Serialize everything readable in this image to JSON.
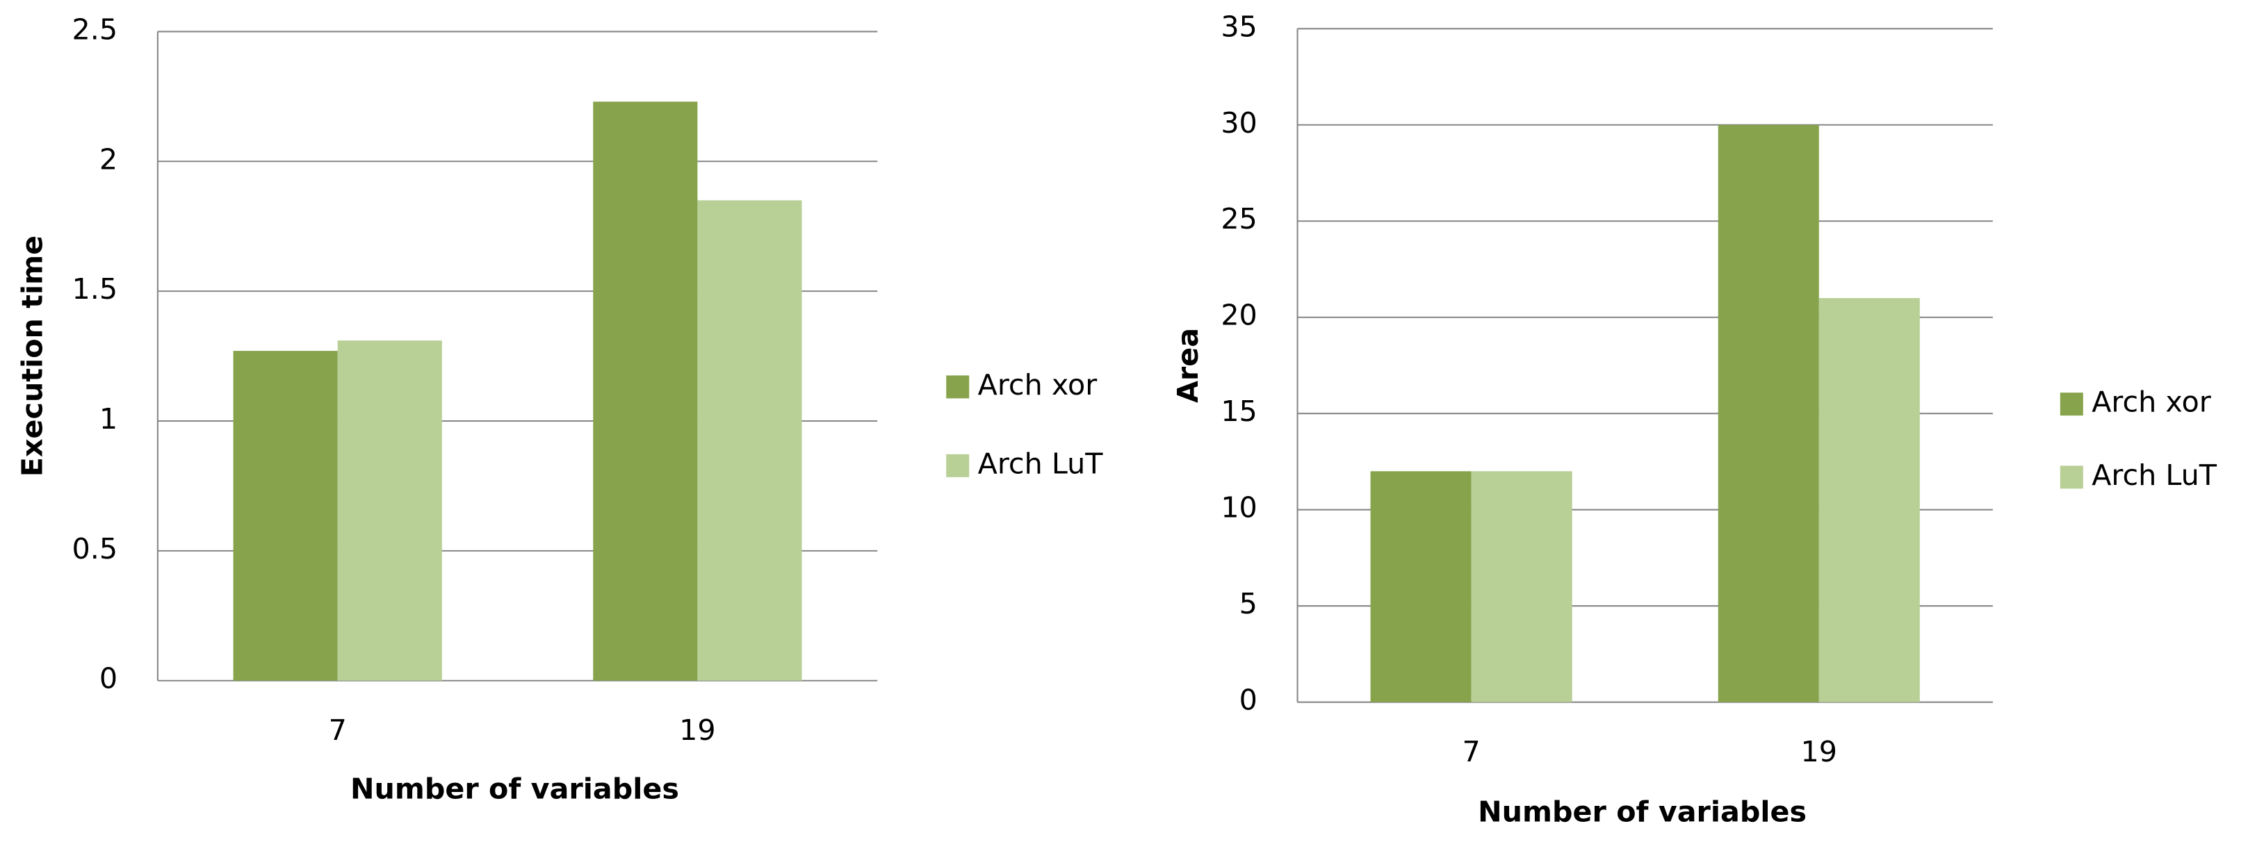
{
  "chart_data": [
    {
      "type": "bar",
      "y_label": "Execution time",
      "x_label": "Number of variables",
      "categories": [
        "7",
        "19"
      ],
      "series": [
        {
          "name": "Arch xor",
          "color": "#87a34c",
          "values": [
            1.27,
            2.23
          ]
        },
        {
          "name": "Arch LuT",
          "color": "#b8cf96",
          "values": [
            1.31,
            1.85
          ]
        }
      ],
      "ylim": [
        0,
        2.5
      ],
      "yticks": [
        0,
        0.5,
        1,
        1.5,
        2,
        2.5
      ],
      "grid": true,
      "legend": "right"
    },
    {
      "type": "bar",
      "y_label": "Area",
      "x_label": "Number of variables",
      "categories": [
        "7",
        "19"
      ],
      "series": [
        {
          "name": "Arch xor",
          "color": "#87a34c",
          "values": [
            12,
            30
          ]
        },
        {
          "name": "Arch LuT",
          "color": "#b8cf96",
          "values": [
            12,
            21
          ]
        }
      ],
      "ylim": [
        0,
        35
      ],
      "yticks": [
        0,
        5,
        10,
        15,
        20,
        25,
        30,
        35
      ],
      "grid": true,
      "legend": "right"
    }
  ]
}
